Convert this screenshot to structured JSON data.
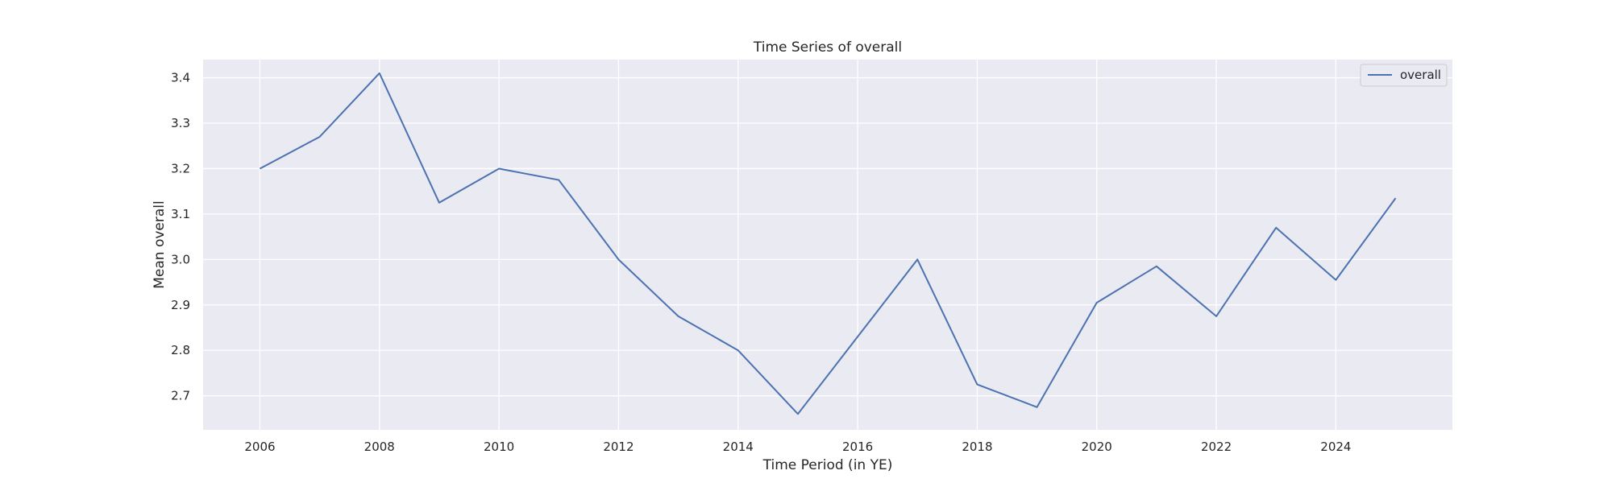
{
  "chart_data": {
    "type": "line",
    "title": "Time Series of overall",
    "xlabel": "Time Period (in YE)",
    "ylabel": "Mean overall",
    "x": [
      2006,
      2007,
      2008,
      2009,
      2010,
      2011,
      2012,
      2013,
      2014,
      2015,
      2016,
      2017,
      2018,
      2019,
      2020,
      2021,
      2022,
      2023,
      2024,
      2025
    ],
    "series": [
      {
        "name": "overall",
        "color": "#4c72b0",
        "values": [
          3.2,
          3.27,
          3.41,
          3.125,
          3.2,
          3.175,
          3.0,
          2.875,
          2.8,
          2.66,
          2.83,
          3.0,
          2.725,
          2.675,
          2.905,
          2.985,
          2.875,
          3.07,
          2.955,
          3.135
        ]
      }
    ],
    "xlim": [
      2005.05,
      2025.95
    ],
    "ylim": [
      2.625,
      3.44
    ],
    "xticks": [
      2006,
      2008,
      2010,
      2012,
      2014,
      2016,
      2018,
      2020,
      2022,
      2024
    ],
    "yticks": [
      2.7,
      2.8,
      2.9,
      3.0,
      3.1,
      3.2,
      3.3,
      3.4
    ],
    "ytick_labels": [
      "2.7",
      "2.8",
      "2.9",
      "3.0",
      "3.1",
      "3.2",
      "3.3",
      "3.4"
    ],
    "grid": true,
    "legend_position": "top-right",
    "plot_background": "#eaeaf2",
    "grid_color": "#ffffff"
  }
}
